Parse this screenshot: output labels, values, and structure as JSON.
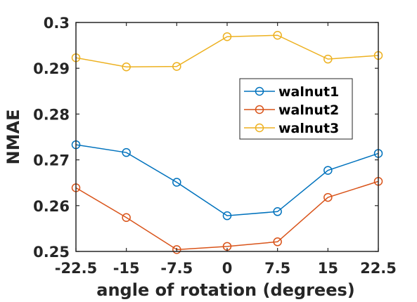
{
  "chart_data": {
    "type": "line",
    "title": "",
    "xlabel": "angle of rotation (degrees)",
    "ylabel": "NMAE",
    "x": [
      -22.5,
      -15,
      -7.5,
      0,
      7.5,
      15,
      22.5
    ],
    "x_tick_labels": [
      "-22.5",
      "-15",
      "-7.5",
      "0",
      "7.5",
      "15",
      "22.5"
    ],
    "y_tick_labels": [
      "0.25",
      "0.26",
      "0.27",
      "0.28",
      "0.29",
      "0.3"
    ],
    "y_ticks": [
      0.25,
      0.26,
      0.27,
      0.28,
      0.29,
      0.3
    ],
    "xlim": [
      -22.5,
      22.5
    ],
    "ylim": [
      0.25,
      0.3
    ],
    "grid": false,
    "legend_position": "center-right",
    "marker": "circle",
    "series": [
      {
        "name": "walnut1",
        "color": "#0072BD",
        "values": [
          0.2733,
          0.2716,
          0.2651,
          0.2578,
          0.2587,
          0.2677,
          0.2714
        ]
      },
      {
        "name": "walnut2",
        "color": "#D95319",
        "values": [
          0.2639,
          0.2574,
          0.2504,
          0.2511,
          0.2521,
          0.2618,
          0.2653
        ]
      },
      {
        "name": "walnut3",
        "color": "#EDB120",
        "values": [
          0.2923,
          0.2903,
          0.2904,
          0.2969,
          0.2972,
          0.292,
          0.2928
        ]
      }
    ]
  }
}
